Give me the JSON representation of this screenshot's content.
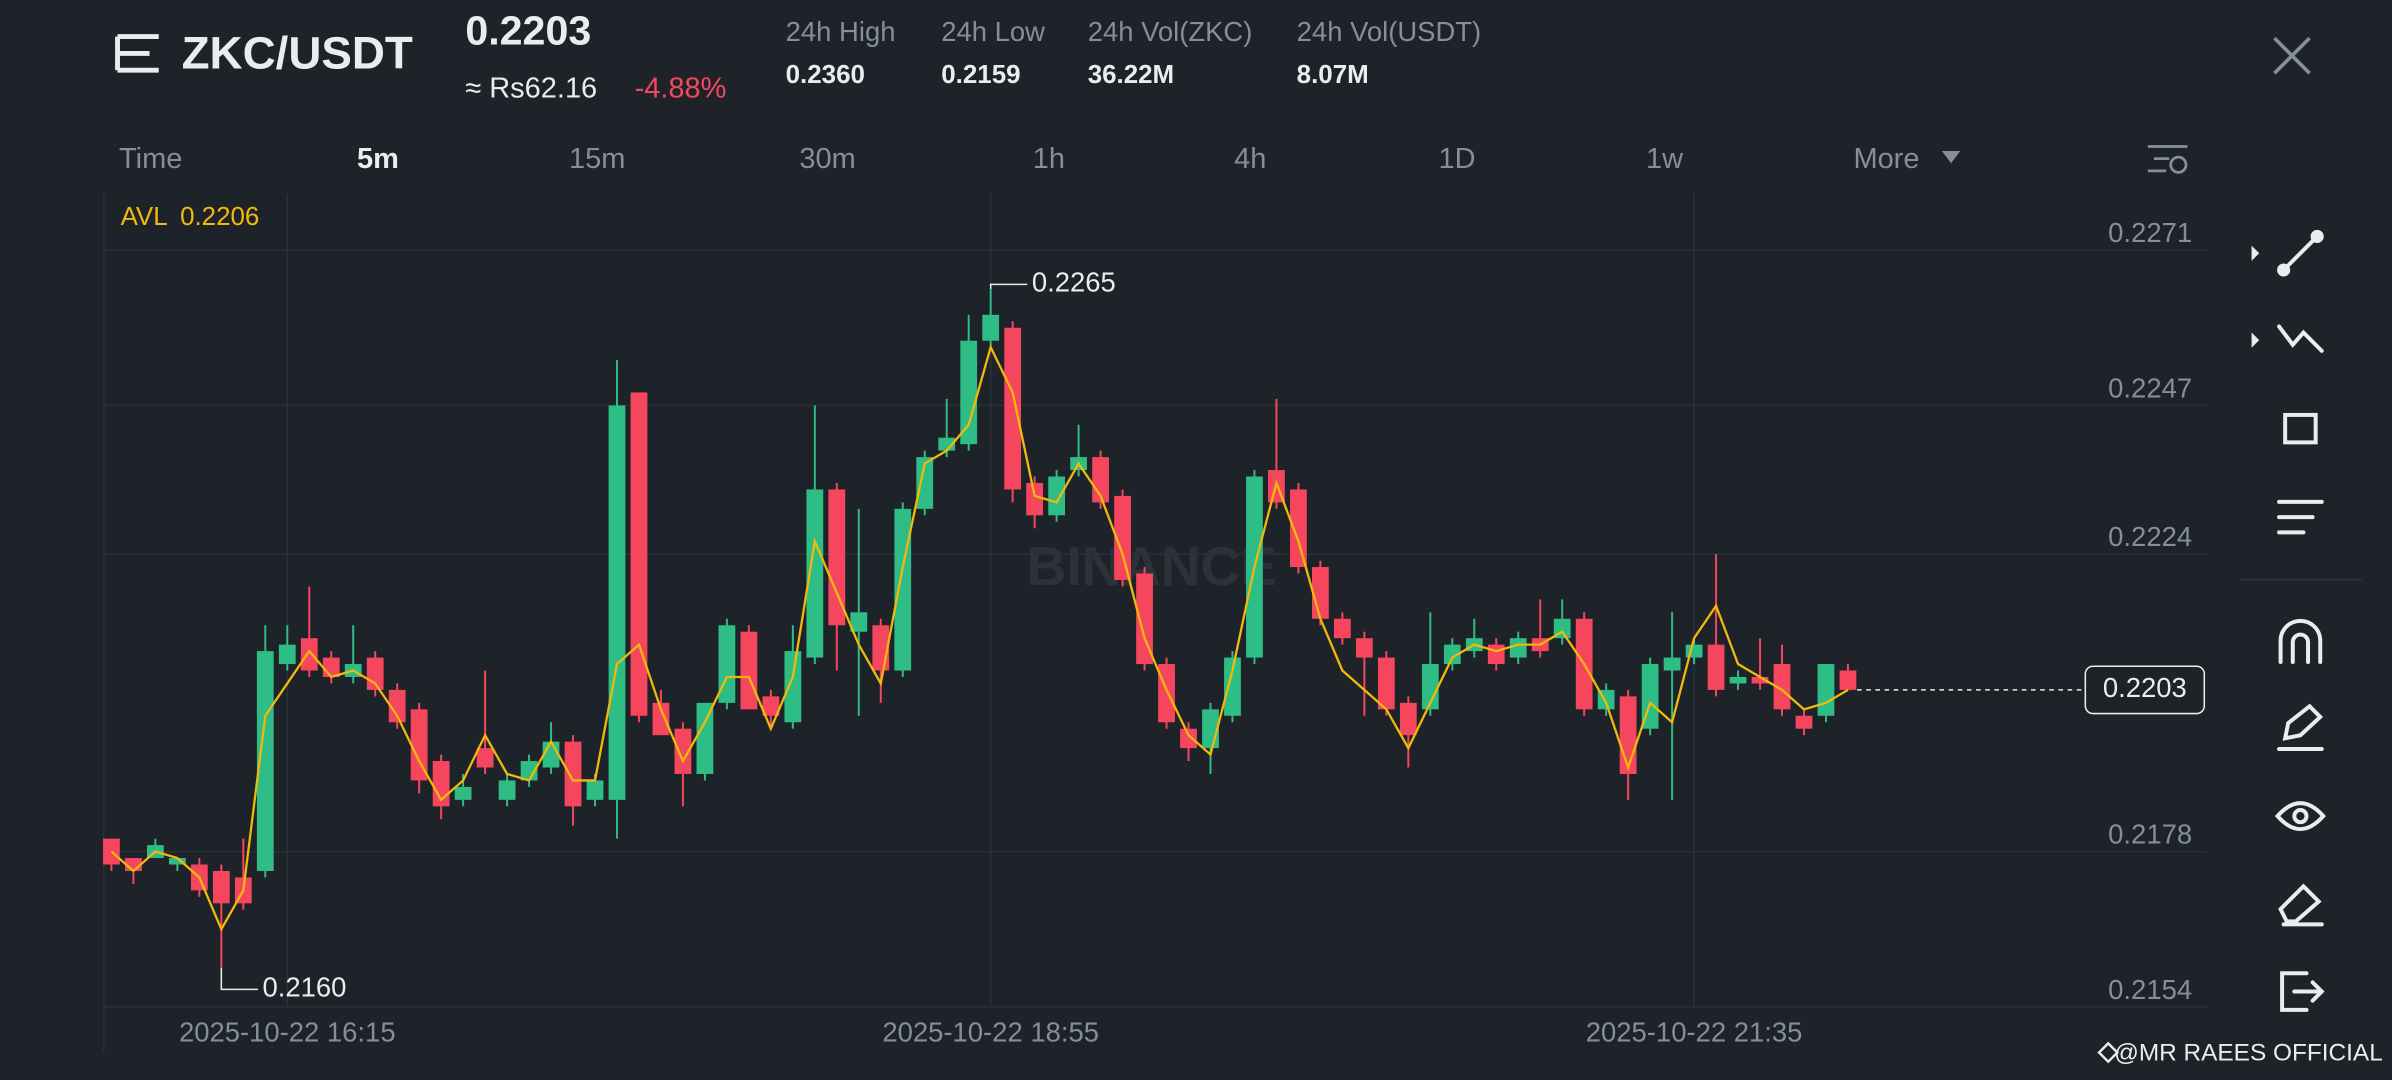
{
  "header": {
    "pair": "ZKC/USDT",
    "price": "0.2203",
    "local_price": "≈ Rs62.16",
    "change": "-4.88%",
    "stats": [
      {
        "label": "24h High",
        "value": "0.2360"
      },
      {
        "label": "24h Low",
        "value": "0.2159"
      },
      {
        "label": "24h Vol(ZKC)",
        "value": "36.22M"
      },
      {
        "label": "24h Vol(USDT)",
        "value": "8.07M"
      }
    ]
  },
  "tabs": [
    "Time",
    "5m",
    "15m",
    "30m",
    "1h",
    "4h",
    "1D",
    "1w",
    "More"
  ],
  "active_tab": 1,
  "watermark": "BINANCE",
  "footer": "@MR RAEES OFFICIAL",
  "chart_data": {
    "type": "candlestick",
    "up_color": "#2ebd85",
    "down_color": "#f6465d",
    "categories": [
      null,
      null,
      null,
      null,
      null,
      null,
      null,
      null,
      "2025-10-22 16:15",
      null,
      null,
      null,
      null,
      null,
      null,
      null,
      null,
      null,
      null,
      null,
      null,
      null,
      null,
      null,
      null,
      null,
      null,
      null,
      null,
      null,
      null,
      null,
      null,
      null,
      null,
      null,
      null,
      null,
      null,
      null,
      "2025-10-22 18:55",
      null,
      null,
      null,
      null,
      null,
      null,
      null,
      null,
      null,
      null,
      null,
      null,
      null,
      null,
      null,
      null,
      null,
      null,
      null,
      null,
      null,
      null,
      null,
      null,
      null,
      null,
      null,
      null,
      null,
      null,
      null,
      "2025-10-22 21:35",
      null,
      null,
      null,
      null,
      null,
      null,
      null
    ],
    "open": [
      0.218,
      0.2177,
      0.2177,
      0.2176,
      0.2176,
      0.2175,
      0.2174,
      0.2175,
      0.2207,
      0.2211,
      0.2208,
      0.2205,
      0.2208,
      0.2203,
      0.22,
      0.2192,
      0.2186,
      0.2194,
      0.2186,
      0.2189,
      0.2191,
      0.2195,
      0.2186,
      0.2186,
      0.2249,
      0.2201,
      0.2197,
      0.219,
      0.2201,
      0.2212,
      0.2202,
      0.2198,
      0.2208,
      0.2234,
      0.2212,
      0.2213,
      0.2206,
      0.2231,
      0.224,
      0.2241,
      0.2257,
      0.2259,
      0.2235,
      0.223,
      0.2237,
      0.2239,
      0.2233,
      0.2221,
      0.2207,
      0.2197,
      0.2194,
      0.2199,
      0.2208,
      0.2237,
      0.2234,
      0.2222,
      0.2214,
      0.2211,
      0.2208,
      0.2201,
      0.22,
      0.2207,
      0.2209,
      0.221,
      0.2208,
      0.2211,
      0.2211,
      0.2214,
      0.22,
      0.2202,
      0.2197,
      0.2206,
      0.2208,
      0.221,
      0.2204,
      0.2205,
      0.2207,
      0.2199,
      0.2199,
      0.2206
    ],
    "high": [
      0.218,
      0.2177,
      0.218,
      0.2177,
      0.2177,
      0.2176,
      0.218,
      0.2213,
      0.2213,
      0.2219,
      0.2209,
      0.2213,
      0.2209,
      0.2204,
      0.2201,
      0.2193,
      0.219,
      0.2206,
      0.219,
      0.2193,
      0.2198,
      0.2196,
      0.219,
      0.2254,
      0.2249,
      0.2203,
      0.2198,
      0.2201,
      0.2214,
      0.2213,
      0.2203,
      0.2213,
      0.2247,
      0.2235,
      0.2231,
      0.2214,
      0.2232,
      0.224,
      0.2248,
      0.2261,
      0.2265,
      0.226,
      0.2236,
      0.2237,
      0.2244,
      0.224,
      0.2234,
      0.2222,
      0.2208,
      0.2198,
      0.2201,
      0.2209,
      0.2237,
      0.2248,
      0.2235,
      0.2223,
      0.2215,
      0.2212,
      0.2209,
      0.2202,
      0.2215,
      0.2211,
      0.2214,
      0.2211,
      0.2212,
      0.2217,
      0.2217,
      0.2215,
      0.2204,
      0.2203,
      0.2208,
      0.2215,
      0.2211,
      0.2224,
      0.2206,
      0.2211,
      0.221,
      0.22,
      0.2207,
      0.2207
    ],
    "low": [
      0.2175,
      0.2173,
      0.2177,
      0.2175,
      0.2171,
      0.216,
      0.2169,
      0.2174,
      0.2206,
      0.2205,
      0.2204,
      0.2204,
      0.2202,
      0.2197,
      0.2187,
      0.2183,
      0.2185,
      0.219,
      0.2185,
      0.2188,
      0.219,
      0.2182,
      0.2185,
      0.218,
      0.2198,
      0.2196,
      0.2185,
      0.2189,
      0.22,
      0.22,
      0.2197,
      0.2197,
      0.2207,
      0.2206,
      0.2199,
      0.2201,
      0.2205,
      0.223,
      0.2239,
      0.224,
      0.2256,
      0.2232,
      0.2228,
      0.2229,
      0.2236,
      0.2231,
      0.2219,
      0.2206,
      0.2197,
      0.2192,
      0.219,
      0.2198,
      0.2207,
      0.2231,
      0.2221,
      0.2213,
      0.221,
      0.2199,
      0.2199,
      0.2191,
      0.2199,
      0.2206,
      0.2208,
      0.2206,
      0.2207,
      0.2208,
      0.221,
      0.2199,
      0.2199,
      0.2186,
      0.2196,
      0.2186,
      0.2207,
      0.2202,
      0.2203,
      0.2203,
      0.2199,
      0.2196,
      0.2198,
      0.2203
    ],
    "close": [
      0.2176,
      0.2175,
      0.2179,
      0.2177,
      0.2172,
      0.217,
      0.217,
      0.2209,
      0.221,
      0.2206,
      0.2205,
      0.2207,
      0.2203,
      0.2198,
      0.2189,
      0.2185,
      0.2188,
      0.2191,
      0.2189,
      0.2192,
      0.2195,
      0.2185,
      0.2189,
      0.2247,
      0.2199,
      0.2196,
      0.219,
      0.2201,
      0.2213,
      0.22,
      0.2199,
      0.2209,
      0.2234,
      0.2213,
      0.2215,
      0.2206,
      0.2231,
      0.2239,
      0.2242,
      0.2257,
      0.2261,
      0.2234,
      0.223,
      0.2236,
      0.2239,
      0.2232,
      0.222,
      0.2207,
      0.2198,
      0.2194,
      0.22,
      0.2208,
      0.2236,
      0.2232,
      0.2222,
      0.2214,
      0.2211,
      0.2208,
      0.22,
      0.2196,
      0.2207,
      0.221,
      0.2211,
      0.2207,
      0.2211,
      0.2209,
      0.2214,
      0.22,
      0.2203,
      0.219,
      0.2207,
      0.2208,
      0.221,
      0.2203,
      0.2205,
      0.2204,
      0.22,
      0.2197,
      0.2207,
      0.2203
    ],
    "avl": {
      "name": "AVL",
      "value": 0.2206,
      "color": "#f0b90b",
      "values": [
        0.2178,
        0.2175,
        0.2178,
        0.2177,
        0.2174,
        0.2166,
        0.2172,
        0.2199,
        0.2204,
        0.2209,
        0.2205,
        0.2206,
        0.2204,
        0.2199,
        0.2192,
        0.2186,
        0.2189,
        0.2196,
        0.219,
        0.2189,
        0.2195,
        0.2189,
        0.2189,
        0.2207,
        0.221,
        0.22,
        0.2192,
        0.2198,
        0.2205,
        0.2205,
        0.2197,
        0.2205,
        0.2226,
        0.2218,
        0.221,
        0.2204,
        0.2222,
        0.2238,
        0.224,
        0.2244,
        0.2256,
        0.2249,
        0.2233,
        0.2232,
        0.2238,
        0.2233,
        0.2224,
        0.2211,
        0.2203,
        0.2196,
        0.2193,
        0.2206,
        0.2222,
        0.2235,
        0.2226,
        0.2214,
        0.2206,
        0.2203,
        0.22,
        0.2194,
        0.2201,
        0.2208,
        0.221,
        0.2209,
        0.221,
        0.221,
        0.2212,
        0.2207,
        0.2201,
        0.2191,
        0.2201,
        0.2198,
        0.2211,
        0.2216,
        0.2207,
        0.2205,
        0.2203,
        0.22,
        0.2201,
        0.2203
      ]
    },
    "high_label": "0.2265",
    "low_label": "0.2160",
    "ylim": [
      0.2154,
      0.2271
    ],
    "yticks": [
      0.2271,
      0.2247,
      0.2224,
      0.2178,
      0.2154
    ],
    "grid": true
  }
}
